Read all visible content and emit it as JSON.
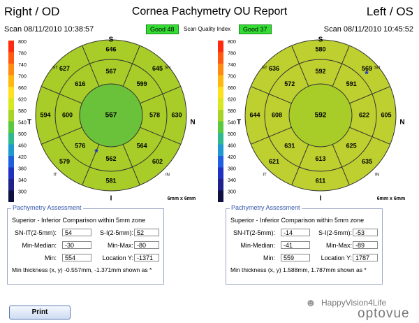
{
  "header": {
    "left": "Right / OD",
    "title": "Cornea Pachymetry OU Report",
    "right": "Left / OS"
  },
  "scan": {
    "od": "Scan 08/11/2010 10:38:57",
    "os": "Scan 08/11/2010 10:45:52"
  },
  "quality": {
    "od": "Good  48",
    "label": "Scan Quality Index",
    "os": "Good  37"
  },
  "scale": [
    "800",
    "780",
    "740",
    "700",
    "660",
    "620",
    "580",
    "540",
    "500",
    "460",
    "420",
    "380",
    "340",
    "300"
  ],
  "maps": [
    {
      "side": "od",
      "compass": {
        "top": "S",
        "left": "T",
        "right": "N",
        "bottom": "I"
      },
      "outer_labels": {
        "st": "ST",
        "sn": "SN",
        "it": "IT",
        "in": "IN"
      },
      "inner_octants": [
        "567",
        "599",
        "578",
        "564",
        "562",
        "576",
        "600",
        "616"
      ],
      "outer_octants": [
        "646",
        "645",
        "630",
        "602",
        "581",
        "579",
        "594",
        "627"
      ],
      "center": "567",
      "size": "6mm x 6mm",
      "colors": {
        "bg": "#a8cc28",
        "center": "#6ac23a"
      }
    },
    {
      "side": "os",
      "compass": {
        "top": "S",
        "left": "T",
        "right": "N",
        "bottom": "I"
      },
      "outer_labels": {
        "st": "ST",
        "sn": "SN",
        "it": "IT",
        "in": "IN"
      },
      "inner_octants": [
        "592",
        "591",
        "622",
        "625",
        "613",
        "631",
        "608",
        "572"
      ],
      "outer_octants": [
        "580",
        "569",
        "605",
        "635",
        "611",
        "621",
        "644",
        "636"
      ],
      "center": "592",
      "size": "6mm x 6mm",
      "colors": {
        "bg": "#bdd030",
        "center": "#a8cc28"
      }
    }
  ],
  "pachy": [
    {
      "legend": "Pachymetry Assessment",
      "subtitle": "Superior - Inferior Comparison within 5mm zone",
      "sn_it_label": "SN-IT(2-5mm):",
      "sn_it": "54",
      "si_label": "S-I(2-5mm):",
      "si": "52",
      "min_median_label": "Min-Median:",
      "min_median": "-30",
      "min_max_label": "Min-Max:",
      "min_max": "-80",
      "min_label": "Min:",
      "min": "554",
      "loc_y_label": "Location Y:",
      "loc_y": "-1371",
      "footnote": "Min thickness (x, y) -0.557mm, -1.371mm shown as *"
    },
    {
      "legend": "Pachymetry Assessment",
      "subtitle": "Superior - Inferior Comparison within 5mm zone",
      "sn_it_label": "SN-IT(2-5mm):",
      "sn_it": "-14",
      "si_label": "S-I(2-5mm):",
      "si": "-53",
      "min_median_label": "Min-Median:",
      "min_median": "-41",
      "min_max_label": "Min-Max:",
      "min_max": "-89",
      "min_label": "Min:",
      "min": "559",
      "loc_y_label": "Location Y:",
      "loc_y": "1787",
      "footnote": "Min thickness (x, y) 1.588mm, 1.787mm shown as *"
    }
  ],
  "print_label": "Print",
  "watermark": {
    "line1": "HappyVision4Life",
    "line2": "optovue"
  }
}
